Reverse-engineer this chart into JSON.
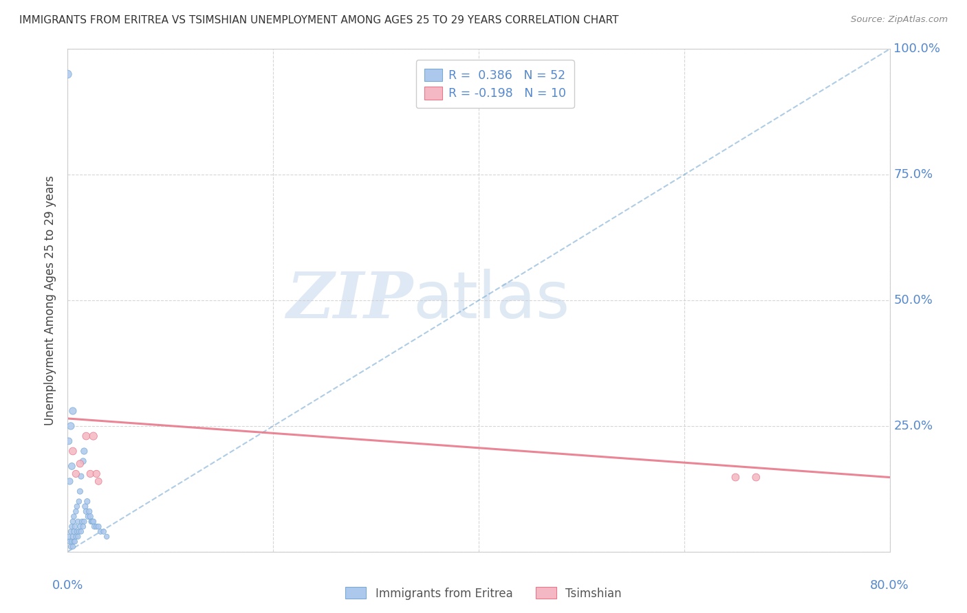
{
  "title": "IMMIGRANTS FROM ERITREA VS TSIMSHIAN UNEMPLOYMENT AMONG AGES 25 TO 29 YEARS CORRELATION CHART",
  "source": "Source: ZipAtlas.com",
  "ylabel": "Unemployment Among Ages 25 to 29 years",
  "xlim": [
    0,
    0.8
  ],
  "ylim": [
    0,
    1.0
  ],
  "xticks": [
    0.0,
    0.2,
    0.4,
    0.6,
    0.8
  ],
  "yticks": [
    0.0,
    0.25,
    0.5,
    0.75,
    1.0
  ],
  "watermark_zip": "ZIP",
  "watermark_atlas": "atlas",
  "blue_R": 0.386,
  "blue_N": 52,
  "pink_R": -0.198,
  "pink_N": 10,
  "blue_color": "#adc8ed",
  "pink_color": "#f4b8c4",
  "blue_edge_color": "#7aaad4",
  "pink_edge_color": "#e8788a",
  "blue_line_color": "#7aaad4",
  "pink_line_color": "#e8788a",
  "axis_color": "#5588cc",
  "grid_color": "#cccccc",
  "blue_scatter_x": [
    0.001,
    0.002,
    0.003,
    0.003,
    0.004,
    0.004,
    0.005,
    0.005,
    0.005,
    0.006,
    0.006,
    0.006,
    0.007,
    0.007,
    0.008,
    0.008,
    0.009,
    0.009,
    0.01,
    0.01,
    0.011,
    0.011,
    0.012,
    0.012,
    0.013,
    0.013,
    0.014,
    0.015,
    0.015,
    0.016,
    0.016,
    0.017,
    0.018,
    0.019,
    0.02,
    0.021,
    0.022,
    0.023,
    0.024,
    0.025,
    0.026,
    0.028,
    0.03,
    0.032,
    0.035,
    0.038,
    0.001,
    0.002,
    0.003,
    0.004,
    0.005,
    0.0
  ],
  "blue_scatter_y": [
    0.03,
    0.02,
    0.01,
    0.04,
    0.02,
    0.05,
    0.01,
    0.03,
    0.06,
    0.02,
    0.04,
    0.07,
    0.02,
    0.05,
    0.03,
    0.08,
    0.04,
    0.09,
    0.03,
    0.06,
    0.04,
    0.1,
    0.05,
    0.12,
    0.04,
    0.15,
    0.06,
    0.05,
    0.18,
    0.06,
    0.2,
    0.09,
    0.08,
    0.1,
    0.07,
    0.08,
    0.07,
    0.06,
    0.06,
    0.06,
    0.05,
    0.05,
    0.05,
    0.04,
    0.04,
    0.03,
    0.22,
    0.14,
    0.25,
    0.17,
    0.28,
    0.95
  ],
  "blue_scatter_sizes": [
    30,
    30,
    28,
    28,
    30,
    30,
    28,
    30,
    30,
    28,
    30,
    30,
    28,
    30,
    28,
    30,
    28,
    30,
    28,
    30,
    28,
    30,
    28,
    35,
    28,
    35,
    30,
    30,
    40,
    30,
    45,
    35,
    35,
    35,
    35,
    35,
    35,
    32,
    32,
    32,
    32,
    32,
    32,
    30,
    30,
    28,
    50,
    45,
    55,
    50,
    55,
    70
  ],
  "pink_scatter_x": [
    0.005,
    0.008,
    0.012,
    0.018,
    0.022,
    0.025,
    0.028,
    0.65,
    0.67,
    0.03
  ],
  "pink_scatter_y": [
    0.2,
    0.155,
    0.175,
    0.23,
    0.155,
    0.23,
    0.155,
    0.148,
    0.148,
    0.14
  ],
  "pink_scatter_sizes": [
    60,
    55,
    55,
    60,
    55,
    65,
    55,
    60,
    60,
    50
  ],
  "blue_trend_x0": 0.0,
  "blue_trend_y0": 0.0,
  "blue_trend_x1": 0.8,
  "blue_trend_y1": 1.0,
  "pink_trend_x0": 0.0,
  "pink_trend_y0": 0.265,
  "pink_trend_x1": 0.8,
  "pink_trend_y1": 0.148
}
